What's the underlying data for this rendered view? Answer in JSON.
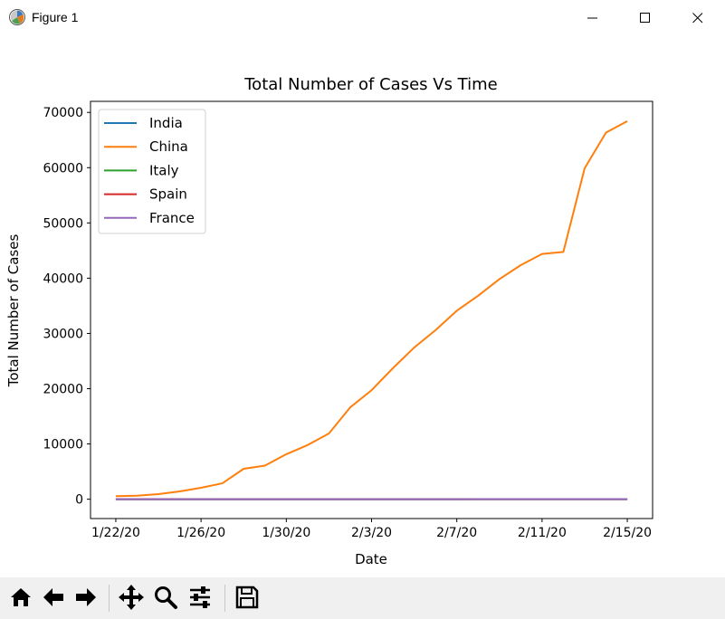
{
  "window": {
    "title": "Figure 1",
    "icons": [
      "app-icon",
      "minimize-icon",
      "maximize-icon",
      "close-icon"
    ]
  },
  "toolbar": {
    "buttons": [
      "home-icon",
      "back-icon",
      "forward-icon",
      "pan-icon",
      "zoom-icon",
      "configure-subplots-icon",
      "save-icon"
    ]
  },
  "chart_data": {
    "type": "line",
    "title": "Total Number of Cases Vs Time",
    "xlabel": "Date",
    "ylabel": "Total Number of Cases",
    "x": [
      "1/22/20",
      "1/23/20",
      "1/24/20",
      "1/25/20",
      "1/26/20",
      "1/27/20",
      "1/28/20",
      "1/29/20",
      "1/30/20",
      "1/31/20",
      "2/1/20",
      "2/2/20",
      "2/3/20",
      "2/4/20",
      "2/5/20",
      "2/6/20",
      "2/7/20",
      "2/8/20",
      "2/9/20",
      "2/10/20",
      "2/11/20",
      "2/12/20",
      "2/13/20",
      "2/14/20",
      "2/15/20"
    ],
    "x_tick_labels": [
      "1/22/20",
      "1/26/20",
      "1/30/20",
      "2/3/20",
      "2/7/20",
      "2/11/20",
      "2/15/20"
    ],
    "y_ticks": [
      0,
      10000,
      20000,
      30000,
      40000,
      50000,
      60000,
      70000
    ],
    "ylim": [
      -3500,
      72000
    ],
    "grid": false,
    "legend_position": "upper-left",
    "series": [
      {
        "name": "India",
        "color": "#1f77b4",
        "values": [
          0,
          0,
          0,
          0,
          0,
          0,
          0,
          0,
          1,
          1,
          1,
          2,
          3,
          3,
          3,
          3,
          3,
          3,
          3,
          3,
          3,
          3,
          3,
          3,
          3
        ]
      },
      {
        "name": "China",
        "color": "#ff7f0e",
        "values": [
          548,
          643,
          920,
          1406,
          2075,
          2877,
          5509,
          6087,
          8141,
          9802,
          11891,
          16630,
          19716,
          23707,
          27440,
          30587,
          34110,
          36814,
          39829,
          42354,
          44386,
          44759,
          59895,
          66358,
          68413
        ]
      },
      {
        "name": "Italy",
        "color": "#2ca02c",
        "values": [
          0,
          0,
          0,
          0,
          0,
          0,
          0,
          0,
          0,
          2,
          2,
          2,
          2,
          2,
          2,
          2,
          3,
          3,
          3,
          3,
          3,
          3,
          3,
          3,
          3
        ]
      },
      {
        "name": "Spain",
        "color": "#d62728",
        "values": [
          0,
          0,
          0,
          0,
          0,
          0,
          0,
          0,
          0,
          0,
          1,
          1,
          1,
          1,
          1,
          1,
          1,
          1,
          2,
          2,
          2,
          2,
          2,
          2,
          2
        ]
      },
      {
        "name": "France",
        "color": "#9467bd",
        "values": [
          0,
          0,
          2,
          3,
          3,
          3,
          4,
          5,
          5,
          5,
          6,
          6,
          6,
          6,
          6,
          6,
          6,
          11,
          11,
          11,
          11,
          11,
          11,
          11,
          12
        ]
      }
    ]
  }
}
